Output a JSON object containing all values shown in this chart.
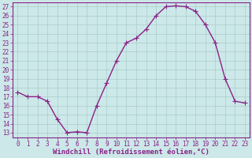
{
  "x": [
    0,
    1,
    2,
    3,
    4,
    5,
    6,
    7,
    8,
    9,
    10,
    11,
    12,
    13,
    14,
    15,
    16,
    17,
    18,
    19,
    20,
    21,
    22,
    23
  ],
  "y": [
    17.5,
    17.0,
    17.0,
    16.5,
    14.5,
    13.0,
    13.1,
    13.0,
    16.0,
    18.5,
    21.0,
    23.0,
    23.5,
    24.5,
    26.0,
    27.0,
    27.1,
    27.0,
    26.5,
    25.0,
    23.0,
    19.0,
    16.5,
    16.3
  ],
  "line_color": "#882288",
  "marker": "+",
  "marker_color": "#882288",
  "bg_color": "#cce8e8",
  "grid_color": "#aacccc",
  "xlabel": "Windchill (Refroidissement éolien,°C)",
  "xlabel_color": "#882288",
  "ylim": [
    12.5,
    27.5
  ],
  "xlim": [
    -0.5,
    23.5
  ],
  "yticks": [
    13,
    14,
    15,
    16,
    17,
    18,
    19,
    20,
    21,
    22,
    23,
    24,
    25,
    26,
    27
  ],
  "xticks": [
    0,
    1,
    2,
    3,
    4,
    5,
    6,
    7,
    8,
    9,
    10,
    11,
    12,
    13,
    14,
    15,
    16,
    17,
    18,
    19,
    20,
    21,
    22,
    23
  ],
  "tick_color": "#882288",
  "tick_fontsize": 5.5,
  "xlabel_fontsize": 6.5,
  "linewidth": 1.0,
  "markersize": 4,
  "spine_color": "#882288"
}
